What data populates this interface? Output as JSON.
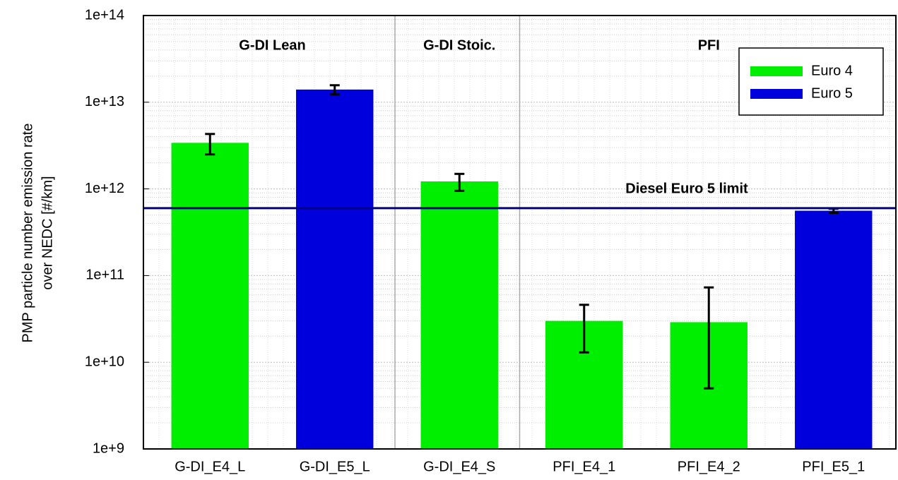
{
  "chart_data": {
    "type": "bar",
    "ylabel": [
      "PMP particle number emission rate",
      "over NEDC [#/km]"
    ],
    "categories": [
      "G-DI_E4_L",
      "G-DI_E5_L",
      "G-DI_E4_S",
      "PFI_E4_1",
      "PFI_E4_2",
      "PFI_E5_1"
    ],
    "group_of_category": [
      "G-DI Lean",
      "G-DI Lean",
      "G-DI Stoic.",
      "PFI",
      "PFI",
      "PFI"
    ],
    "series": [
      {
        "name": "Euro 4",
        "color": "#00ee00",
        "values": [
          3400000000000.0,
          null,
          1220000000000.0,
          30000000000.0,
          29000000000.0,
          null
        ],
        "error_high": [
          900000000000.0,
          null,
          270000000000.0,
          16000000000.0,
          44000000000.0,
          null
        ],
        "error_low": [
          900000000000.0,
          null,
          270000000000.0,
          17000000000.0,
          24000000000.0,
          null
        ]
      },
      {
        "name": "Euro 5",
        "color": "#0000dd",
        "values": [
          null,
          14000000000000.0,
          null,
          null,
          null,
          560000000000.0
        ],
        "error_high": [
          null,
          1700000000000.0,
          null,
          null,
          null,
          30000000000.0
        ],
        "error_low": [
          null,
          1700000000000.0,
          null,
          null,
          null,
          30000000000.0
        ]
      }
    ],
    "log_scale": true,
    "ylim": [
      1000000000.0,
      100000000000000.0
    ],
    "yticks": [
      {
        "value": 1000000000.0,
        "label": "1e+9"
      },
      {
        "value": 10000000000.0,
        "label": "1e+10"
      },
      {
        "value": 100000000000.0,
        "label": "1e+11"
      },
      {
        "value": 1000000000000.0,
        "label": "1e+12"
      },
      {
        "value": 10000000000000.0,
        "label": "1e+13"
      },
      {
        "value": 100000000000000.0,
        "label": "1e+14"
      }
    ],
    "grid": true,
    "legend": "upper right",
    "reference_line": {
      "label": "Diesel Euro 5 limit",
      "value": 600000000000.0,
      "color": "#000080"
    }
  }
}
